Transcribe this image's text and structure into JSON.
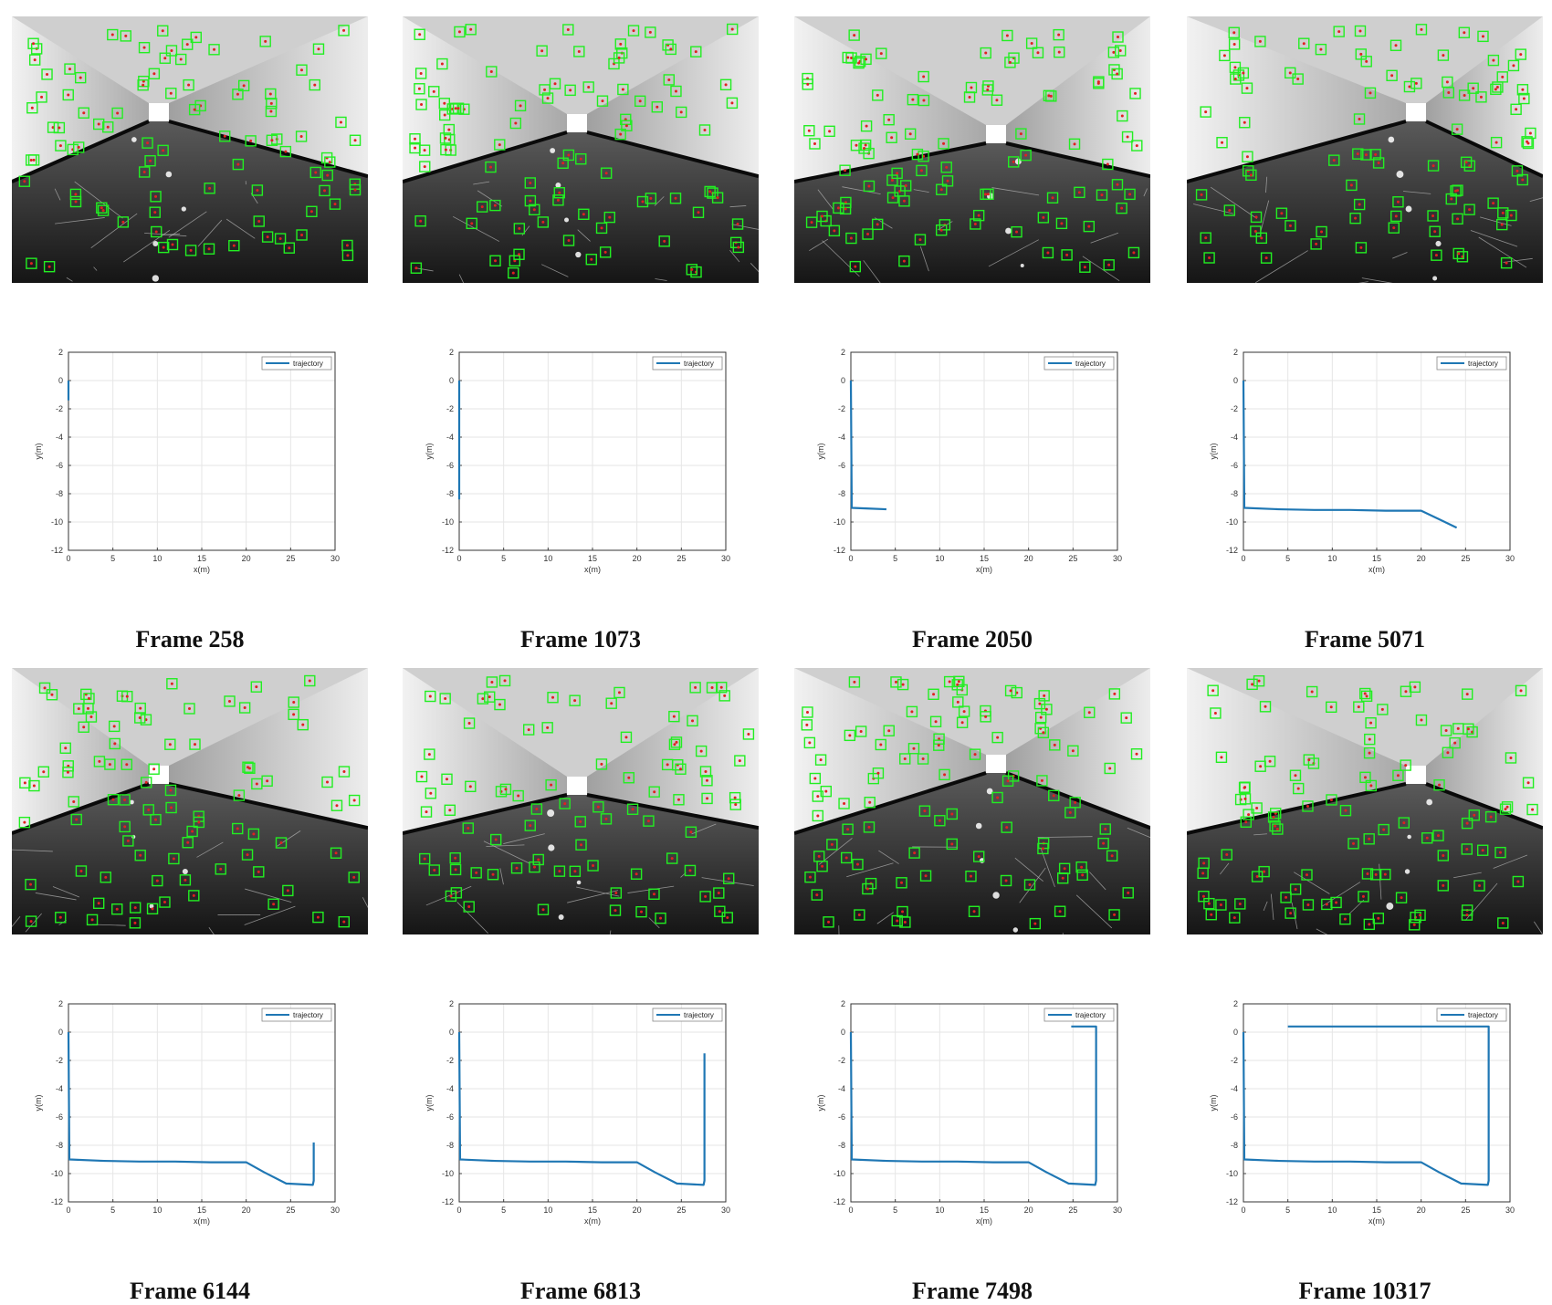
{
  "figure": {
    "panels": [
      {
        "caption": "Frame 258"
      },
      {
        "caption": "Frame 1073"
      },
      {
        "caption": "Frame 2050"
      },
      {
        "caption": "Frame 5071"
      },
      {
        "caption": "Frame 6144"
      },
      {
        "caption": "Frame 6813"
      },
      {
        "caption": "Frame 7498"
      },
      {
        "caption": "Frame 10317"
      }
    ]
  },
  "colors": {
    "trajectory": "#1f77b4",
    "feature_box": "#22ee22",
    "feature_dot": "#e02020",
    "grid": "#e6e6e6"
  },
  "chart_data": [
    {
      "type": "line",
      "title": "",
      "xlabel": "x(m)",
      "ylabel": "y(m)",
      "xlim": [
        0,
        30
      ],
      "ylim": [
        -12,
        2
      ],
      "xticks": [
        0,
        5,
        10,
        15,
        20,
        25,
        30
      ],
      "yticks": [
        2,
        0,
        -2,
        -4,
        -6,
        -8,
        -10,
        -12
      ],
      "grid": true,
      "legend": "top-right",
      "series": [
        {
          "name": "trajectory",
          "x": [
            0,
            0
          ],
          "y": [
            0,
            -1.4
          ]
        }
      ]
    },
    {
      "type": "line",
      "title": "",
      "xlabel": "x(m)",
      "ylabel": "y(m)",
      "xlim": [
        0,
        30
      ],
      "ylim": [
        -12,
        2
      ],
      "xticks": [
        0,
        5,
        10,
        15,
        20,
        25,
        30
      ],
      "yticks": [
        2,
        0,
        -2,
        -4,
        -6,
        -8,
        -10,
        -12
      ],
      "grid": true,
      "legend": "top-right",
      "series": [
        {
          "name": "trajectory",
          "x": [
            0,
            0
          ],
          "y": [
            0,
            -8.4
          ]
        }
      ]
    },
    {
      "type": "line",
      "title": "",
      "xlabel": "x(m)",
      "ylabel": "y(m)",
      "xlim": [
        0,
        30
      ],
      "ylim": [
        -12,
        2
      ],
      "xticks": [
        0,
        5,
        10,
        15,
        20,
        25,
        30
      ],
      "yticks": [
        2,
        0,
        -2,
        -4,
        -6,
        -8,
        -10,
        -12
      ],
      "grid": true,
      "legend": "top-right",
      "series": [
        {
          "name": "trajectory",
          "x": [
            0,
            0.1,
            2,
            4
          ],
          "y": [
            0,
            -9.0,
            -9.05,
            -9.1
          ]
        }
      ]
    },
    {
      "type": "line",
      "title": "",
      "xlabel": "x(m)",
      "ylabel": "y(m)",
      "xlim": [
        0,
        30
      ],
      "ylim": [
        -12,
        2
      ],
      "xticks": [
        0,
        5,
        10,
        15,
        20,
        25,
        30
      ],
      "yticks": [
        2,
        0,
        -2,
        -4,
        -6,
        -8,
        -10,
        -12
      ],
      "grid": true,
      "legend": "top-right",
      "series": [
        {
          "name": "trajectory",
          "x": [
            0,
            0.1,
            4,
            8,
            12,
            16,
            20,
            22,
            24
          ],
          "y": [
            0,
            -9.0,
            -9.1,
            -9.15,
            -9.15,
            -9.2,
            -9.2,
            -9.8,
            -10.4
          ]
        }
      ]
    },
    {
      "type": "line",
      "title": "",
      "xlabel": "x(m)",
      "ylabel": "y(m)",
      "xlim": [
        0,
        30
      ],
      "ylim": [
        -12,
        2
      ],
      "xticks": [
        0,
        5,
        10,
        15,
        20,
        25,
        30
      ],
      "yticks": [
        2,
        0,
        -2,
        -4,
        -6,
        -8,
        -10,
        -12
      ],
      "grid": true,
      "legend": "top-right",
      "series": [
        {
          "name": "trajectory",
          "x": [
            0,
            0.1,
            4,
            8,
            12,
            16,
            20,
            22,
            24.5,
            27.5,
            27.6,
            27.6
          ],
          "y": [
            0,
            -9.0,
            -9.1,
            -9.15,
            -9.15,
            -9.2,
            -9.2,
            -9.9,
            -10.7,
            -10.8,
            -10.5,
            -7.8
          ]
        }
      ]
    },
    {
      "type": "line",
      "title": "",
      "xlabel": "x(m)",
      "ylabel": "y(m)",
      "xlim": [
        0,
        30
      ],
      "ylim": [
        -12,
        2
      ],
      "xticks": [
        0,
        5,
        10,
        15,
        20,
        25,
        30
      ],
      "yticks": [
        2,
        0,
        -2,
        -4,
        -6,
        -8,
        -10,
        -12
      ],
      "grid": true,
      "legend": "top-right",
      "series": [
        {
          "name": "trajectory",
          "x": [
            0,
            0.1,
            4,
            8,
            12,
            16,
            20,
            22,
            24.5,
            27.5,
            27.6,
            27.6
          ],
          "y": [
            0,
            -9.0,
            -9.1,
            -9.15,
            -9.15,
            -9.2,
            -9.2,
            -9.9,
            -10.7,
            -10.8,
            -10.5,
            -1.5
          ]
        }
      ]
    },
    {
      "type": "line",
      "title": "",
      "xlabel": "x(m)",
      "ylabel": "y(m)",
      "xlim": [
        0,
        30
      ],
      "ylim": [
        -12,
        2
      ],
      "xticks": [
        0,
        5,
        10,
        15,
        20,
        25,
        30
      ],
      "yticks": [
        2,
        0,
        -2,
        -4,
        -6,
        -8,
        -10,
        -12
      ],
      "grid": true,
      "legend": "top-right",
      "series": [
        {
          "name": "trajectory",
          "x": [
            0,
            0.1,
            4,
            8,
            12,
            16,
            20,
            22,
            24.5,
            27.5,
            27.6,
            27.6,
            24.8
          ],
          "y": [
            0,
            -9.0,
            -9.1,
            -9.15,
            -9.15,
            -9.2,
            -9.2,
            -9.9,
            -10.7,
            -10.8,
            -10.5,
            0.4,
            0.4
          ]
        }
      ]
    },
    {
      "type": "line",
      "title": "",
      "xlabel": "x(m)",
      "ylabel": "y(m)",
      "xlim": [
        0,
        30
      ],
      "ylim": [
        -12,
        2
      ],
      "xticks": [
        0,
        5,
        10,
        15,
        20,
        25,
        30
      ],
      "yticks": [
        2,
        0,
        -2,
        -4,
        -6,
        -8,
        -10,
        -12
      ],
      "grid": true,
      "legend": "top-right",
      "series": [
        {
          "name": "trajectory",
          "x": [
            0,
            0.1,
            4,
            8,
            12,
            16,
            20,
            22,
            24.5,
            27.5,
            27.6,
            27.6,
            5
          ],
          "y": [
            0,
            -9.0,
            -9.1,
            -9.15,
            -9.15,
            -9.2,
            -9.2,
            -9.9,
            -10.7,
            -10.8,
            -10.5,
            0.4,
            0.4
          ]
        }
      ]
    }
  ]
}
